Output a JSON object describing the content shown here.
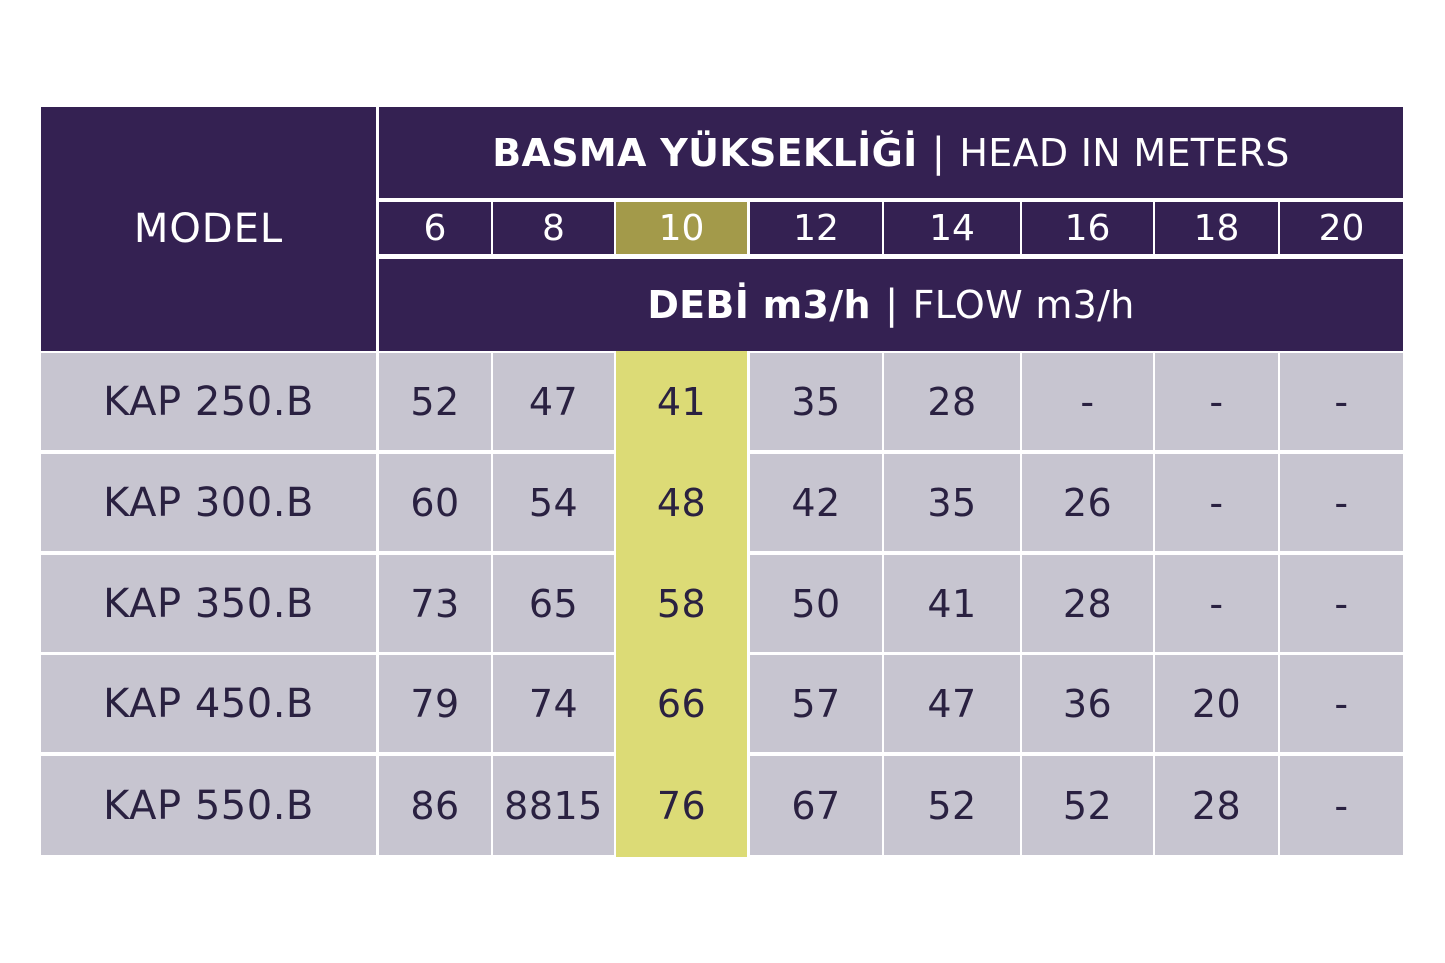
{
  "table": {
    "model_header": "MODEL",
    "head_title_main": "BASMA YÜKSEKLİĞİ",
    "head_title_separator": "|",
    "head_title_en": "HEAD IN METERS",
    "flow_title_main": "DEBİ m3/h",
    "flow_title_separator": "|",
    "flow_title_en": "FLOW m3/h",
    "head_values": [
      "6",
      "8",
      "10",
      "12",
      "14",
      "16",
      "18",
      "20"
    ],
    "highlighted_head": "10",
    "rows": [
      {
        "model": "KAP 250.B",
        "values": [
          "52",
          "47",
          "41",
          "35",
          "28",
          "-",
          "-",
          "-"
        ]
      },
      {
        "model": "KAP 300.B",
        "values": [
          "60",
          "54",
          "48",
          "42",
          "35",
          "26",
          "-",
          "-"
        ]
      },
      {
        "model": "KAP 350.B",
        "values": [
          "73",
          "65",
          "58",
          "50",
          "41",
          "28",
          "-",
          "-"
        ]
      },
      {
        "model": "KAP 450.B",
        "values": [
          "79",
          "74",
          "66",
          "57",
          "47",
          "36",
          "20",
          "-"
        ]
      },
      {
        "model": "KAP 550.B",
        "values": [
          "86",
          "8815",
          "76",
          "67",
          "52",
          "52",
          "28",
          "-"
        ]
      }
    ],
    "colors": {
      "header_bg": "#342152",
      "body_bg": "#c7c5d0",
      "highlight_column_bg": "#dcdb76",
      "highlight_header_bg": "#a39a4a",
      "text_dark": "#2a2141"
    }
  }
}
